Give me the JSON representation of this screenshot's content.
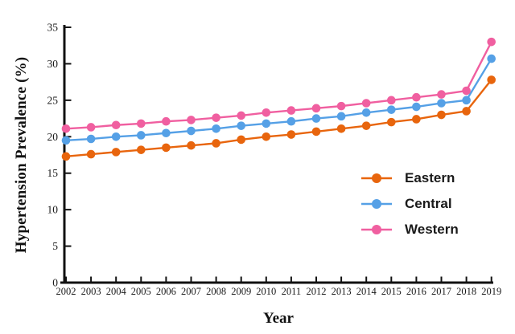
{
  "figure": {
    "background": "#ffffff",
    "axis_color": "#111111",
    "text_color": "#1a1a1a"
  },
  "chart_data": {
    "type": "line",
    "title": "",
    "xlabel": "Year",
    "ylabel": "Hypertension Prevalence (%)",
    "categories": [
      "2002",
      "2003",
      "2004",
      "2005",
      "2006",
      "2007",
      "2008",
      "2009",
      "2010",
      "2011",
      "2012",
      "2013",
      "2014",
      "2015",
      "2016",
      "2017",
      "2018",
      "2019"
    ],
    "ylim": [
      0,
      35
    ],
    "yticks": [
      0,
      5,
      10,
      15,
      20,
      25,
      30,
      35
    ],
    "grid": false,
    "legend_position": "right-middle",
    "marker": "circle",
    "series": [
      {
        "name": "Eastern",
        "color": "#E8650D",
        "values": [
          17.3,
          17.6,
          17.9,
          18.2,
          18.5,
          18.8,
          19.1,
          19.6,
          20.0,
          20.3,
          20.7,
          21.1,
          21.5,
          22.0,
          22.4,
          23.0,
          23.5,
          27.8
        ]
      },
      {
        "name": "Central",
        "color": "#55A0E6",
        "values": [
          19.5,
          19.7,
          20.0,
          20.2,
          20.5,
          20.8,
          21.1,
          21.5,
          21.8,
          22.1,
          22.5,
          22.8,
          23.3,
          23.7,
          24.1,
          24.6,
          25.0,
          30.7
        ]
      },
      {
        "name": "Western",
        "color": "#F05FA0",
        "values": [
          21.1,
          21.3,
          21.6,
          21.8,
          22.1,
          22.3,
          22.6,
          22.9,
          23.3,
          23.6,
          23.9,
          24.2,
          24.6,
          25.0,
          25.4,
          25.8,
          26.3,
          33.0
        ]
      }
    ]
  }
}
